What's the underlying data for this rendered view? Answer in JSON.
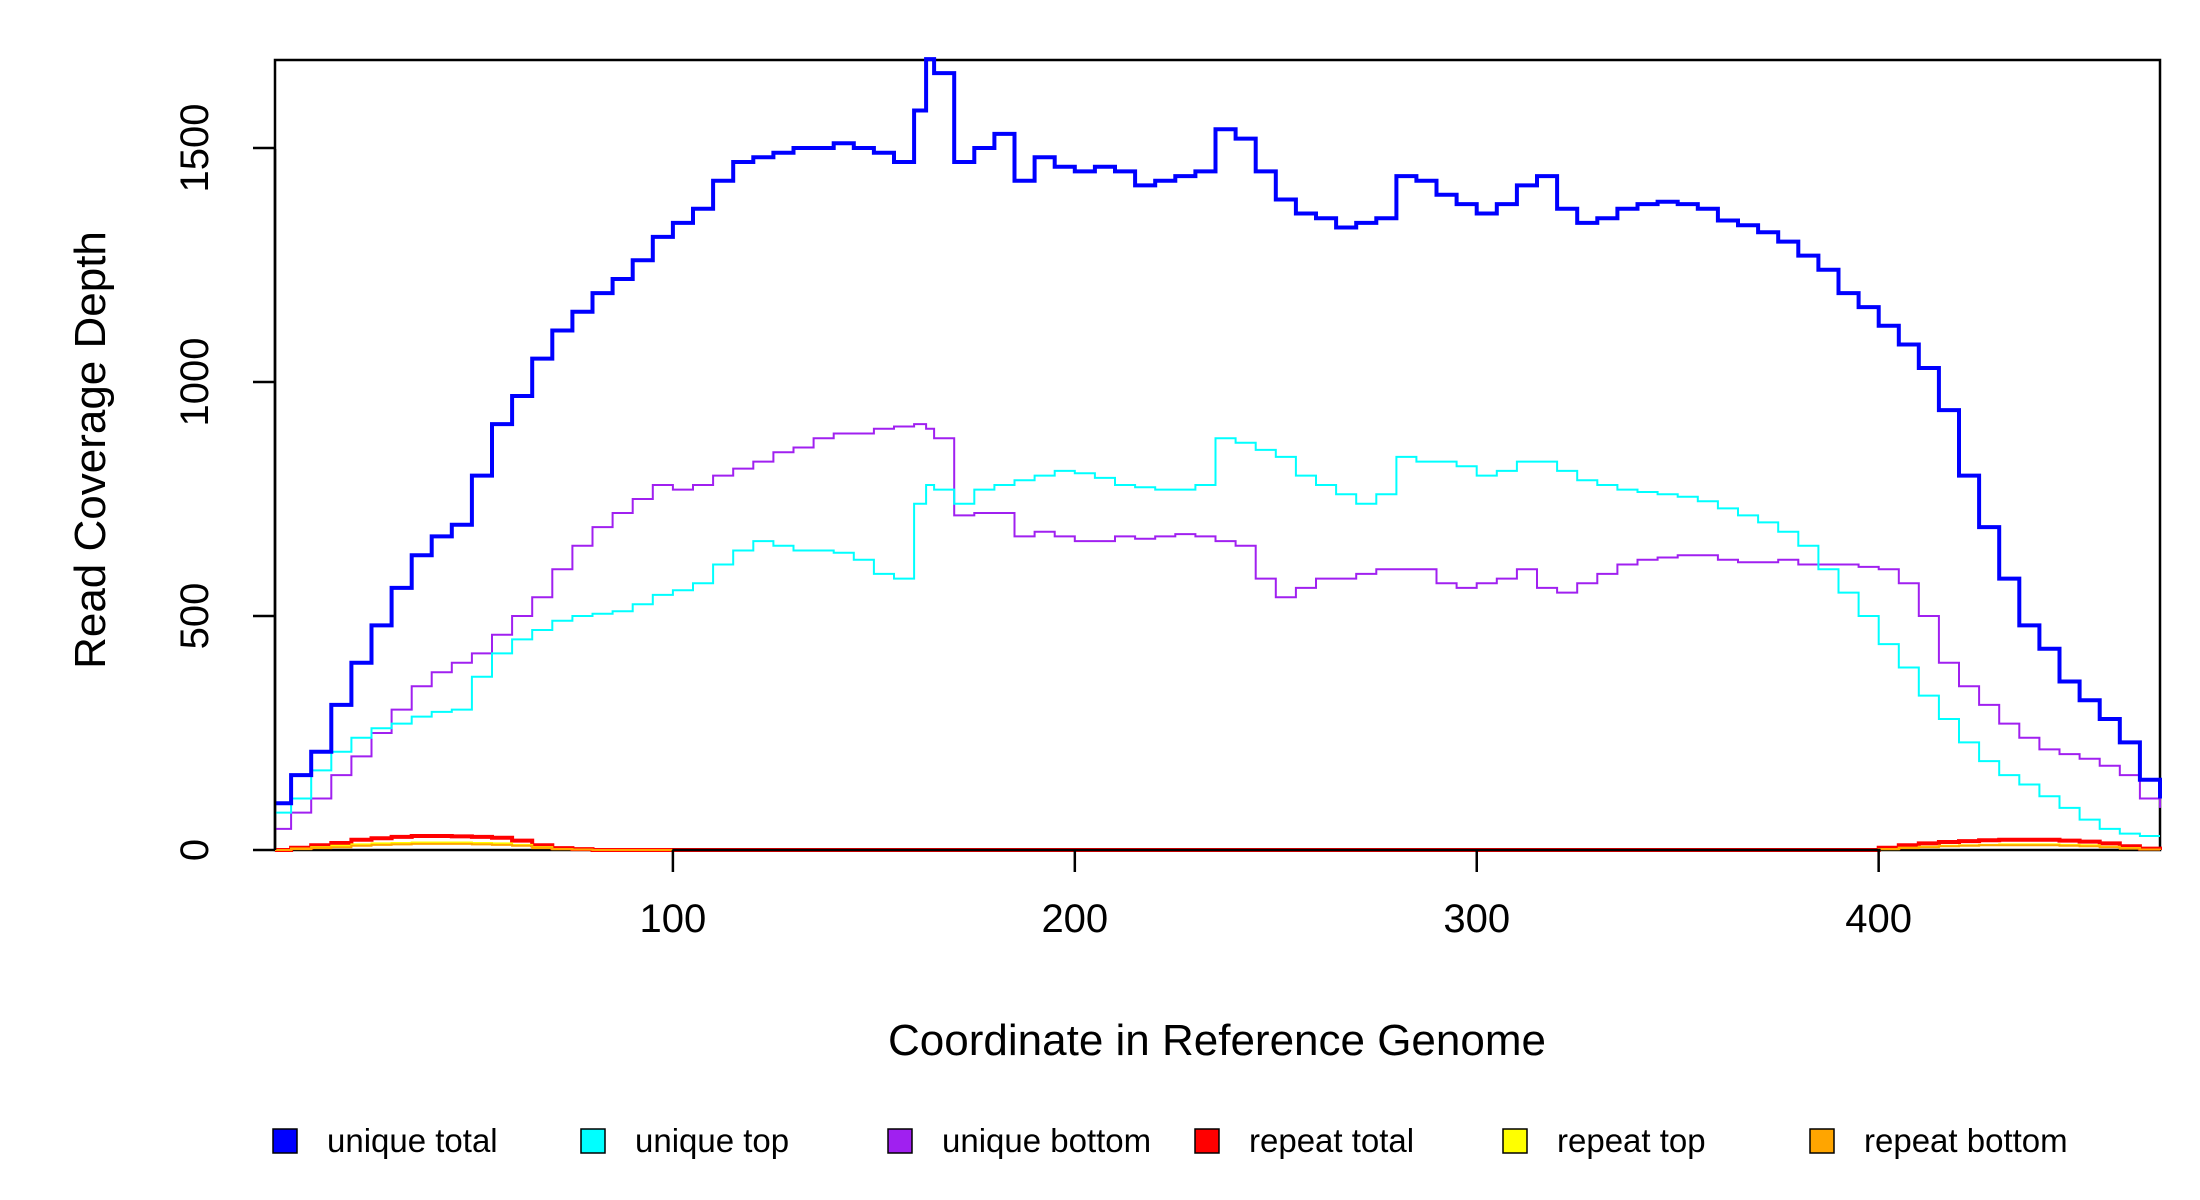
{
  "chart_data": {
    "type": "line",
    "title": "",
    "xlabel": "Coordinate in Reference Genome",
    "ylabel": "Read Coverage Depth",
    "xlim": [
      1,
      470
    ],
    "ylim": [
      0,
      1700
    ],
    "xticks": [
      100,
      200,
      300,
      400
    ],
    "yticks": [
      0,
      500,
      1000,
      1500
    ],
    "grid": false,
    "legend_position": "bottom",
    "x": [
      1,
      5,
      10,
      15,
      20,
      25,
      30,
      35,
      40,
      45,
      50,
      55,
      60,
      65,
      70,
      75,
      80,
      85,
      90,
      95,
      100,
      105,
      110,
      115,
      120,
      125,
      130,
      135,
      140,
      145,
      150,
      155,
      160,
      163,
      165,
      170,
      175,
      180,
      185,
      190,
      195,
      200,
      205,
      210,
      215,
      220,
      225,
      230,
      235,
      240,
      245,
      250,
      255,
      260,
      265,
      270,
      275,
      280,
      285,
      290,
      295,
      300,
      305,
      310,
      315,
      320,
      325,
      330,
      335,
      340,
      345,
      350,
      355,
      360,
      365,
      370,
      375,
      380,
      385,
      390,
      395,
      400,
      405,
      410,
      415,
      420,
      425,
      430,
      435,
      440,
      445,
      450,
      455,
      460,
      465,
      470
    ],
    "series": [
      {
        "name": "unique total",
        "color": "#0000ff",
        "stroke_width": 4,
        "values": [
          100,
          160,
          210,
          310,
          400,
          480,
          560,
          630,
          670,
          695,
          800,
          910,
          970,
          1050,
          1110,
          1150,
          1190,
          1220,
          1260,
          1310,
          1340,
          1370,
          1430,
          1470,
          1480,
          1490,
          1500,
          1500,
          1510,
          1500,
          1490,
          1470,
          1580,
          1690,
          1660,
          1470,
          1500,
          1530,
          1430,
          1480,
          1460,
          1450,
          1460,
          1450,
          1420,
          1430,
          1440,
          1450,
          1540,
          1520,
          1450,
          1390,
          1360,
          1350,
          1330,
          1340,
          1350,
          1440,
          1430,
          1400,
          1380,
          1360,
          1380,
          1420,
          1440,
          1370,
          1340,
          1350,
          1370,
          1380,
          1385,
          1380,
          1370,
          1345,
          1335,
          1320,
          1300,
          1270,
          1240,
          1190,
          1160,
          1120,
          1080,
          1030,
          940,
          800,
          690,
          580,
          480,
          430,
          360,
          320,
          280,
          230,
          150,
          110
        ]
      },
      {
        "name": "unique top",
        "color": "#00ffff",
        "stroke_width": 2,
        "values": [
          80,
          110,
          170,
          210,
          240,
          260,
          270,
          285,
          295,
          300,
          370,
          420,
          450,
          470,
          490,
          500,
          505,
          510,
          525,
          545,
          555,
          570,
          610,
          640,
          660,
          650,
          640,
          640,
          635,
          620,
          590,
          580,
          740,
          780,
          770,
          740,
          770,
          780,
          790,
          800,
          810,
          805,
          795,
          780,
          775,
          770,
          770,
          780,
          880,
          870,
          855,
          840,
          800,
          780,
          760,
          740,
          760,
          840,
          830,
          830,
          820,
          800,
          810,
          830,
          830,
          810,
          790,
          780,
          770,
          765,
          760,
          755,
          745,
          730,
          715,
          700,
          680,
          650,
          600,
          550,
          500,
          440,
          390,
          330,
          280,
          230,
          190,
          160,
          140,
          115,
          90,
          65,
          45,
          35,
          30,
          30
        ]
      },
      {
        "name": "unique bottom",
        "color": "#a020f0",
        "stroke_width": 2,
        "values": [
          45,
          80,
          110,
          160,
          200,
          250,
          300,
          350,
          380,
          400,
          420,
          460,
          500,
          540,
          600,
          650,
          690,
          720,
          750,
          780,
          770,
          780,
          800,
          815,
          830,
          850,
          860,
          880,
          890,
          890,
          900,
          905,
          910,
          900,
          880,
          715,
          720,
          720,
          670,
          680,
          670,
          660,
          660,
          670,
          665,
          670,
          675,
          670,
          660,
          650,
          580,
          540,
          560,
          580,
          580,
          590,
          600,
          600,
          600,
          570,
          560,
          570,
          580,
          600,
          560,
          550,
          570,
          590,
          610,
          620,
          625,
          630,
          630,
          620,
          615,
          615,
          620,
          610,
          610,
          610,
          605,
          600,
          570,
          500,
          400,
          350,
          310,
          270,
          240,
          215,
          205,
          195,
          180,
          160,
          110,
          90
        ]
      },
      {
        "name": "repeat total",
        "color": "#ff0000",
        "stroke_width": 4,
        "values": [
          0,
          5,
          10,
          15,
          22,
          25,
          28,
          30,
          30,
          29,
          28,
          26,
          20,
          10,
          4,
          2,
          0,
          0,
          0,
          0,
          0,
          0,
          0,
          0,
          0,
          0,
          0,
          0,
          0,
          0,
          0,
          0,
          0,
          0,
          0,
          0,
          0,
          0,
          0,
          0,
          0,
          0,
          0,
          0,
          0,
          0,
          0,
          0,
          0,
          0,
          0,
          0,
          0,
          0,
          0,
          0,
          0,
          0,
          0,
          0,
          0,
          0,
          0,
          0,
          0,
          0,
          0,
          0,
          0,
          0,
          0,
          0,
          0,
          0,
          0,
          0,
          0,
          0,
          0,
          0,
          0,
          5,
          10,
          14,
          17,
          19,
          21,
          22,
          22,
          22,
          20,
          18,
          14,
          8,
          3,
          0
        ]
      },
      {
        "name": "repeat top",
        "color": "#ffff00",
        "stroke_width": 2,
        "values": [
          0,
          3,
          6,
          9,
          12,
          14,
          15,
          16,
          16,
          16,
          15,
          14,
          11,
          6,
          2,
          1,
          0,
          0,
          0,
          0,
          0,
          0,
          0,
          0,
          0,
          0,
          0,
          0,
          0,
          0,
          0,
          0,
          0,
          0,
          0,
          0,
          0,
          0,
          0,
          0,
          0,
          0,
          0,
          0,
          0,
          0,
          0,
          0,
          0,
          0,
          0,
          0,
          0,
          0,
          0,
          0,
          0,
          0,
          0,
          0,
          0,
          0,
          0,
          0,
          0,
          0,
          0,
          0,
          0,
          0,
          0,
          0,
          0,
          0,
          0,
          0,
          0,
          0,
          0,
          0,
          0,
          2,
          5,
          7,
          9,
          10,
          11,
          12,
          12,
          12,
          11,
          10,
          7,
          4,
          1,
          0
        ]
      },
      {
        "name": "repeat bottom",
        "color": "#ffa500",
        "stroke_width": 2,
        "values": [
          0,
          2,
          4,
          6,
          9,
          11,
          12,
          13,
          13,
          13,
          12,
          11,
          9,
          4,
          2,
          1,
          0,
          0,
          0,
          0,
          0,
          0,
          0,
          0,
          0,
          0,
          0,
          0,
          0,
          0,
          0,
          0,
          0,
          0,
          0,
          0,
          0,
          0,
          0,
          0,
          0,
          0,
          0,
          0,
          0,
          0,
          0,
          0,
          0,
          0,
          0,
          0,
          0,
          0,
          0,
          0,
          0,
          0,
          0,
          0,
          0,
          0,
          0,
          0,
          0,
          0,
          0,
          0,
          0,
          0,
          0,
          0,
          0,
          0,
          0,
          0,
          0,
          0,
          0,
          0,
          0,
          2,
          4,
          6,
          8,
          9,
          10,
          10,
          10,
          10,
          9,
          8,
          6,
          3,
          1,
          0
        ]
      }
    ]
  }
}
